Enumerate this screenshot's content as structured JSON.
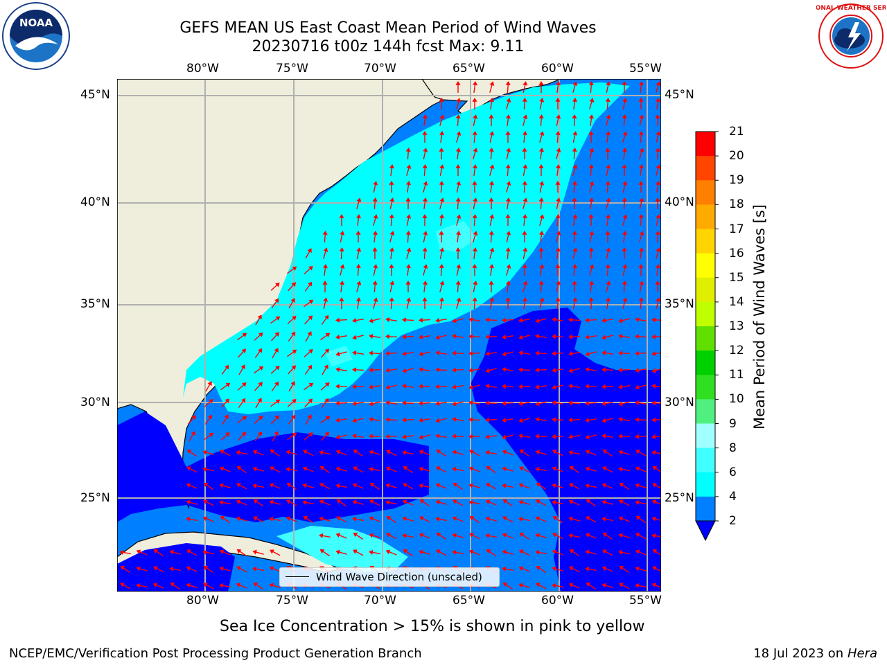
{
  "title": {
    "line1": "GEFS MEAN US East Coast Mean Period of Wind Waves",
    "line2": "20230716 t00z 144h fcst   Max: 9.11"
  },
  "map": {
    "lon_labels": [
      "80°W",
      "75°W",
      "70°W",
      "65°W",
      "60°W",
      "55°W"
    ],
    "lat_labels": [
      "45°N",
      "40°N",
      "35°N",
      "30°N",
      "25°N"
    ],
    "legend_label": "Wind Wave Direction (unscaled)"
  },
  "colorbar": {
    "title": "Mean Period of Wind Waves [s]",
    "ticks": [
      "2",
      "4",
      "6",
      "8",
      "9",
      "10",
      "11",
      "12",
      "13",
      "14",
      "15",
      "16",
      "17",
      "18",
      "19",
      "20",
      "21"
    ],
    "colors": [
      "#0000ff",
      "#0080ff",
      "#00ffff",
      "#40ffff",
      "#a0ffff",
      "#50f080",
      "#30e020",
      "#00d000",
      "#60e000",
      "#c0ff00",
      "#e0ee00",
      "#ffff00",
      "#ffd400",
      "#ffaa00",
      "#ff7f00",
      "#ff4500",
      "#ff0000"
    ]
  },
  "note": "Sea Ice Concentration > 15% is shown in pink to yellow",
  "footer": {
    "left": "NCEP/EMC/Verification Post Processing Product Generation Branch",
    "date": "18 Jul 2023 on ",
    "machine": "Hera"
  },
  "logos": {
    "left_text": "NOAA",
    "right_text": "NATIONAL WEATHER SERVICE"
  }
}
